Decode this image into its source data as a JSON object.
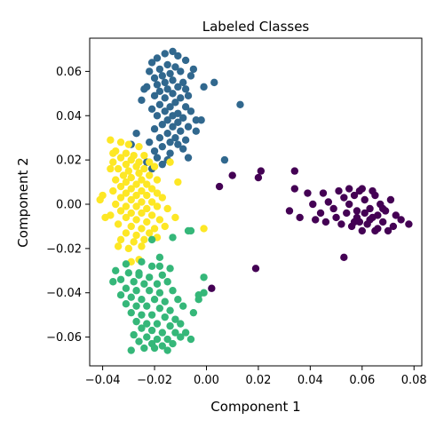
{
  "chart_data": {
    "type": "scatter",
    "title": "Labeled Classes",
    "xlabel": "Component 1",
    "ylabel": "Component 2",
    "xlim": [
      -0.045,
      0.083
    ],
    "ylim": [
      -0.073,
      0.075
    ],
    "xticks": [
      -0.04,
      -0.02,
      0.0,
      0.02,
      0.04,
      0.06,
      0.08
    ],
    "xtick_labels": [
      "−0.04",
      "−0.02",
      "0.00",
      "0.02",
      "0.04",
      "0.06",
      "0.08"
    ],
    "yticks": [
      -0.06,
      -0.04,
      -0.02,
      0.0,
      0.02,
      0.04,
      0.06
    ],
    "ytick_labels": [
      "−0.06",
      "−0.04",
      "−0.02",
      "0.00",
      "0.02",
      "0.04",
      "0.06"
    ],
    "grid": false,
    "legend": false,
    "series": [
      {
        "color": "#31688e",
        "points": [
          [
            -0.016,
            0.068
          ],
          [
            -0.013,
            0.069
          ],
          [
            -0.011,
            0.067
          ],
          [
            -0.019,
            0.066
          ],
          [
            -0.008,
            0.065
          ],
          [
            -0.021,
            0.064
          ],
          [
            -0.015,
            0.063
          ],
          [
            -0.012,
            0.062
          ],
          [
            -0.018,
            0.061
          ],
          [
            -0.022,
            0.06
          ],
          [
            -0.01,
            0.06
          ],
          [
            -0.014,
            0.059
          ],
          [
            -0.017,
            0.058
          ],
          [
            -0.006,
            0.058
          ],
          [
            -0.02,
            0.057
          ],
          [
            -0.013,
            0.056
          ],
          [
            -0.016,
            0.055
          ],
          [
            -0.009,
            0.055
          ],
          [
            -0.019,
            0.054
          ],
          [
            -0.023,
            0.053
          ],
          [
            -0.011,
            0.053
          ],
          [
            -0.015,
            0.052
          ],
          [
            -0.018,
            0.051
          ],
          [
            -0.008,
            0.052
          ],
          [
            -0.013,
            0.05
          ],
          [
            -0.02,
            0.049
          ],
          [
            -0.016,
            0.048
          ],
          [
            -0.01,
            0.048
          ],
          [
            -0.025,
            0.047
          ],
          [
            -0.012,
            0.046
          ],
          [
            -0.018,
            0.045
          ],
          [
            -0.014,
            0.044
          ],
          [
            -0.008,
            0.044
          ],
          [
            -0.021,
            0.043
          ],
          [
            -0.016,
            0.042
          ],
          [
            -0.011,
            0.041
          ],
          [
            -0.006,
            0.042
          ],
          [
            -0.019,
            0.04
          ],
          [
            -0.013,
            0.04
          ],
          [
            -0.009,
            0.039
          ],
          [
            -0.015,
            0.038
          ],
          [
            -0.004,
            0.038
          ],
          [
            -0.002,
            0.038
          ],
          [
            -0.011,
            0.037
          ],
          [
            -0.017,
            0.036
          ],
          [
            -0.013,
            0.035
          ],
          [
            -0.007,
            0.035
          ],
          [
            -0.02,
            0.034
          ],
          [
            -0.01,
            0.033
          ],
          [
            -0.015,
            0.032
          ],
          [
            -0.012,
            0.03
          ],
          [
            -0.018,
            0.03
          ],
          [
            -0.008,
            0.029
          ],
          [
            -0.014,
            0.028
          ],
          [
            -0.022,
            0.028
          ],
          [
            -0.011,
            0.027
          ],
          [
            -0.017,
            0.026
          ],
          [
            -0.009,
            0.025
          ],
          [
            -0.02,
            0.024
          ],
          [
            -0.014,
            0.023
          ],
          [
            -0.027,
            0.032
          ],
          [
            -0.029,
            0.027
          ],
          [
            -0.019,
            0.021
          ],
          [
            -0.015,
            0.02
          ],
          [
            -0.023,
            0.019
          ],
          [
            -0.017,
            0.018
          ],
          [
            -0.007,
            0.021
          ],
          [
            -0.021,
            0.016
          ],
          [
            -0.004,
            0.033
          ],
          [
            0.013,
            0.045
          ],
          [
            0.003,
            0.055
          ],
          [
            -0.001,
            0.053
          ],
          [
            -0.005,
            0.061
          ],
          [
            -0.024,
            0.052
          ],
          [
            -0.007,
            0.049
          ],
          [
            0.007,
            0.02
          ]
        ]
      },
      {
        "color": "#fde725",
        "points": [
          [
            -0.037,
            0.029
          ],
          [
            -0.033,
            0.028
          ],
          [
            -0.03,
            0.027
          ],
          [
            -0.026,
            0.026
          ],
          [
            -0.035,
            0.024
          ],
          [
            -0.031,
            0.023
          ],
          [
            -0.028,
            0.022
          ],
          [
            -0.024,
            0.022
          ],
          [
            -0.033,
            0.021
          ],
          [
            -0.029,
            0.02
          ],
          [
            -0.036,
            0.019
          ],
          [
            -0.026,
            0.019
          ],
          [
            -0.022,
            0.019
          ],
          [
            -0.031,
            0.018
          ],
          [
            -0.027,
            0.017
          ],
          [
            -0.034,
            0.016
          ],
          [
            -0.024,
            0.016
          ],
          [
            -0.02,
            0.017
          ],
          [
            -0.03,
            0.015
          ],
          [
            -0.026,
            0.014
          ],
          [
            -0.032,
            0.013
          ],
          [
            -0.022,
            0.013
          ],
          [
            -0.029,
            0.012
          ],
          [
            -0.025,
            0.011
          ],
          [
            -0.035,
            0.011
          ],
          [
            -0.019,
            0.011
          ],
          [
            -0.031,
            0.01
          ],
          [
            -0.027,
            0.009
          ],
          [
            -0.023,
            0.009
          ],
          [
            -0.033,
            0.008
          ],
          [
            -0.029,
            0.007
          ],
          [
            -0.025,
            0.006
          ],
          [
            -0.021,
            0.007
          ],
          [
            -0.036,
            0.006
          ],
          [
            -0.031,
            0.005
          ],
          [
            -0.027,
            0.004
          ],
          [
            -0.023,
            0.004
          ],
          [
            -0.019,
            0.005
          ],
          [
            -0.033,
            0.003
          ],
          [
            -0.029,
            0.002
          ],
          [
            -0.025,
            0.001
          ],
          [
            -0.021,
            0.001
          ],
          [
            -0.035,
            0.0
          ],
          [
            -0.031,
            -0.001
          ],
          [
            -0.027,
            -0.001
          ],
          [
            -0.023,
            -0.002
          ],
          [
            -0.019,
            -0.001
          ],
          [
            -0.033,
            -0.003
          ],
          [
            -0.029,
            -0.004
          ],
          [
            -0.025,
            -0.004
          ],
          [
            -0.021,
            -0.005
          ],
          [
            -0.037,
            -0.005
          ],
          [
            -0.031,
            -0.006
          ],
          [
            -0.027,
            -0.007
          ],
          [
            -0.023,
            -0.008
          ],
          [
            -0.018,
            -0.007
          ],
          [
            -0.034,
            -0.009
          ],
          [
            -0.029,
            -0.01
          ],
          [
            -0.025,
            -0.011
          ],
          [
            -0.02,
            -0.011
          ],
          [
            -0.031,
            -0.013
          ],
          [
            -0.027,
            -0.014
          ],
          [
            -0.022,
            -0.013
          ],
          [
            -0.033,
            -0.016
          ],
          [
            -0.028,
            -0.017
          ],
          [
            -0.024,
            -0.016
          ],
          [
            -0.019,
            -0.015
          ],
          [
            -0.034,
            -0.019
          ],
          [
            -0.03,
            -0.02
          ],
          [
            -0.025,
            -0.019
          ],
          [
            -0.029,
            -0.026
          ],
          [
            -0.026,
            -0.025
          ],
          [
            -0.039,
            -0.006
          ],
          [
            -0.04,
            0.004
          ],
          [
            -0.041,
            0.002
          ],
          [
            -0.014,
            0.019
          ],
          [
            -0.015,
            -0.002
          ],
          [
            -0.012,
            -0.006
          ],
          [
            -0.016,
            -0.01
          ],
          [
            -0.011,
            0.01
          ],
          [
            -0.017,
            0.003
          ],
          [
            -0.001,
            -0.011
          ],
          [
            -0.036,
            0.023
          ],
          [
            -0.037,
            0.016
          ]
        ]
      },
      {
        "color": "#35b779",
        "points": [
          [
            -0.021,
            -0.016
          ],
          [
            -0.013,
            -0.015
          ],
          [
            -0.007,
            -0.012
          ],
          [
            -0.006,
            -0.012
          ],
          [
            -0.018,
            -0.024
          ],
          [
            -0.025,
            -0.026
          ],
          [
            -0.021,
            -0.028
          ],
          [
            -0.018,
            -0.028
          ],
          [
            -0.014,
            -0.029
          ],
          [
            -0.035,
            -0.03
          ],
          [
            -0.03,
            -0.031
          ],
          [
            -0.026,
            -0.032
          ],
          [
            -0.022,
            -0.033
          ],
          [
            -0.017,
            -0.032
          ],
          [
            -0.033,
            -0.034
          ],
          [
            -0.028,
            -0.035
          ],
          [
            -0.024,
            -0.036
          ],
          [
            -0.019,
            -0.036
          ],
          [
            -0.015,
            -0.035
          ],
          [
            -0.031,
            -0.038
          ],
          [
            -0.027,
            -0.039
          ],
          [
            -0.022,
            -0.039
          ],
          [
            -0.018,
            -0.04
          ],
          [
            -0.013,
            -0.039
          ],
          [
            -0.033,
            -0.041
          ],
          [
            -0.029,
            -0.042
          ],
          [
            -0.025,
            -0.043
          ],
          [
            -0.02,
            -0.043
          ],
          [
            -0.016,
            -0.044
          ],
          [
            -0.011,
            -0.043
          ],
          [
            -0.031,
            -0.045
          ],
          [
            -0.027,
            -0.046
          ],
          [
            -0.023,
            -0.046
          ],
          [
            -0.018,
            -0.047
          ],
          [
            -0.014,
            -0.048
          ],
          [
            -0.009,
            -0.046
          ],
          [
            -0.029,
            -0.049
          ],
          [
            -0.025,
            -0.05
          ],
          [
            -0.021,
            -0.05
          ],
          [
            -0.016,
            -0.051
          ],
          [
            -0.012,
            -0.052
          ],
          [
            -0.027,
            -0.053
          ],
          [
            -0.023,
            -0.054
          ],
          [
            -0.019,
            -0.054
          ],
          [
            -0.014,
            -0.055
          ],
          [
            -0.01,
            -0.054
          ],
          [
            -0.025,
            -0.056
          ],
          [
            -0.021,
            -0.057
          ],
          [
            -0.017,
            -0.058
          ],
          [
            -0.012,
            -0.058
          ],
          [
            -0.028,
            -0.059
          ],
          [
            -0.023,
            -0.06
          ],
          [
            -0.019,
            -0.061
          ],
          [
            -0.015,
            -0.061
          ],
          [
            -0.01,
            -0.06
          ],
          [
            -0.026,
            -0.062
          ],
          [
            -0.021,
            -0.063
          ],
          [
            -0.017,
            -0.064
          ],
          [
            -0.013,
            -0.063
          ],
          [
            -0.024,
            -0.065
          ],
          [
            -0.02,
            -0.065
          ],
          [
            -0.029,
            -0.066
          ],
          [
            -0.015,
            -0.066
          ],
          [
            -0.008,
            -0.058
          ],
          [
            -0.006,
            -0.061
          ],
          [
            -0.005,
            -0.049
          ],
          [
            -0.003,
            -0.041
          ],
          [
            -0.001,
            -0.04
          ],
          [
            -0.001,
            -0.033
          ],
          [
            -0.036,
            -0.035
          ],
          [
            -0.031,
            -0.027
          ],
          [
            -0.026,
            -0.031
          ],
          [
            -0.003,
            -0.043
          ]
        ]
      },
      {
        "color": "#440154",
        "points": [
          [
            0.032,
            -0.003
          ],
          [
            0.034,
            0.007
          ],
          [
            0.039,
            0.005
          ],
          [
            0.041,
            0.0
          ],
          [
            0.036,
            -0.006
          ],
          [
            0.042,
            -0.007
          ],
          [
            0.045,
            0.005
          ],
          [
            0.047,
            0.001
          ],
          [
            0.044,
            -0.004
          ],
          [
            0.049,
            -0.002
          ],
          [
            0.046,
            -0.008
          ],
          [
            0.051,
            0.006
          ],
          [
            0.053,
            0.003
          ],
          [
            0.05,
            -0.006
          ],
          [
            0.055,
            0.0
          ],
          [
            0.052,
            -0.009
          ],
          [
            0.057,
            0.004
          ],
          [
            0.054,
            -0.004
          ],
          [
            0.059,
            0.006
          ],
          [
            0.056,
            -0.01
          ],
          [
            0.061,
            0.002
          ],
          [
            0.058,
            -0.006
          ],
          [
            0.063,
            -0.002
          ],
          [
            0.06,
            -0.012
          ],
          [
            0.065,
            0.004
          ],
          [
            0.062,
            -0.009
          ],
          [
            0.067,
            0.0
          ],
          [
            0.064,
            -0.006
          ],
          [
            0.069,
            -0.003
          ],
          [
            0.066,
            -0.011
          ],
          [
            0.071,
            0.002
          ],
          [
            0.068,
            -0.008
          ],
          [
            0.073,
            -0.005
          ],
          [
            0.07,
            -0.012
          ],
          [
            0.075,
            -0.007
          ],
          [
            0.078,
            -0.009
          ],
          [
            0.072,
            -0.01
          ],
          [
            0.055,
            0.007
          ],
          [
            0.06,
            0.007
          ],
          [
            0.064,
            0.006
          ],
          [
            0.058,
            -0.003
          ],
          [
            0.061,
            -0.004
          ],
          [
            0.063,
            -0.007
          ],
          [
            0.057,
            -0.008
          ],
          [
            0.053,
            -0.024
          ],
          [
            0.019,
            -0.029
          ],
          [
            0.021,
            0.015
          ],
          [
            0.034,
            0.015
          ],
          [
            0.02,
            0.012
          ],
          [
            0.01,
            0.013
          ],
          [
            0.005,
            0.008
          ],
          [
            0.002,
            -0.038
          ],
          [
            0.066,
            -0.005
          ],
          [
            0.068,
            -0.002
          ],
          [
            0.065,
            -0.012
          ],
          [
            0.059,
            -0.008
          ]
        ]
      }
    ]
  }
}
